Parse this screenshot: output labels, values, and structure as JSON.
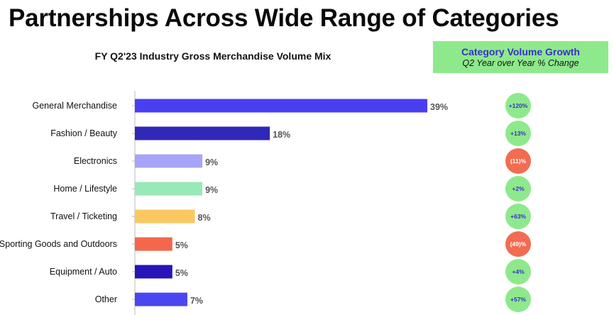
{
  "page": {
    "title": "Partnerships Across Wide Range of Categories"
  },
  "growth_header": {
    "title": "Category Volume Growth",
    "subtitle": "Q2 Year over Year % Change"
  },
  "colors": {
    "positive_circle": "#8ee98c",
    "negative_circle": "#f26c52",
    "positive_text": "#3b2fc9",
    "negative_text": "#ffffff",
    "axis": "#bbbbbb"
  },
  "chart_data": {
    "type": "bar",
    "orientation": "horizontal",
    "title": "FY Q2'23 Industry Gross Merchandise Volume Mix",
    "categories": [
      "General Merchandise",
      "Fashion / Beauty",
      "Electronics",
      "Home / Lifestyle",
      "Travel / Ticketing",
      "Sporting Goods and Outdoors",
      "Equipment / Auto",
      "Other"
    ],
    "values": [
      39,
      18,
      9,
      9,
      8,
      5,
      5,
      7
    ],
    "value_labels": [
      "39%",
      "18%",
      "9%",
      "9%",
      "8%",
      "5%",
      "5%",
      "7%"
    ],
    "bar_colors": [
      "#4a3ff0",
      "#2f28b8",
      "#a6a4f7",
      "#98e8b8",
      "#fcc862",
      "#f5674c",
      "#2715b8",
      "#4a47f0"
    ],
    "growth": [
      "+120%",
      "+13%",
      "(11)%",
      "+2%",
      "+63%",
      "(49)%",
      "+4%",
      "+57%"
    ],
    "growth_positive": [
      true,
      true,
      false,
      true,
      true,
      false,
      true,
      true
    ],
    "xlim": [
      0,
      45
    ]
  }
}
